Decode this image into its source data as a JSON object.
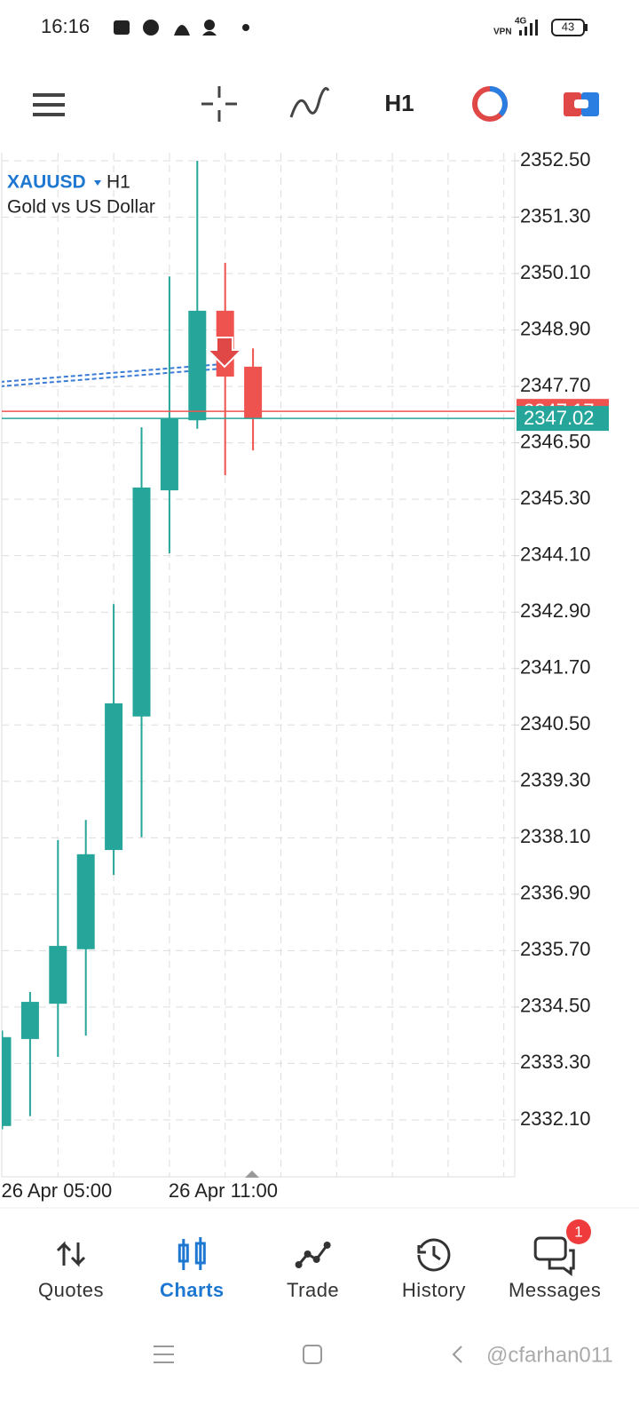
{
  "status_bar": {
    "time": "16:16",
    "vpn": "VPN",
    "network": "4G",
    "battery": "43"
  },
  "toolbar": {
    "timeframe": "H1"
  },
  "chart_data": {
    "type": "candlestick",
    "symbol": "XAUUSD",
    "timeframe": "H1",
    "description": "Gold vs US Dollar",
    "categories": [
      "26 Apr 05:00",
      null,
      null,
      null,
      null,
      null,
      "26 Apr 11:00",
      null,
      null,
      null
    ],
    "open": [
      2331.97,
      2333.82,
      2334.57,
      2335.73,
      2337.84,
      2340.68,
      2345.49,
      2346.98,
      2349.31,
      2348.12
    ],
    "high": [
      2334.0,
      2334.82,
      2338.05,
      2338.48,
      2343.07,
      2346.83,
      2350.04,
      2352.5,
      2350.33,
      2348.51
    ],
    "low": [
      2331.9,
      2332.18,
      2333.44,
      2333.89,
      2337.31,
      2338.11,
      2344.15,
      2346.8,
      2345.81,
      2346.34
    ],
    "close": [
      2333.86,
      2334.61,
      2335.8,
      2337.75,
      2340.96,
      2345.55,
      2347.02,
      2349.31,
      2347.91,
      2347.02
    ],
    "up_color": "#26a69a",
    "down_color": "#ef5350",
    "bid": 2347.02,
    "ask": 2347.17,
    "ylim": [
      2330.89,
      2352.67
    ],
    "yticks": [
      {
        "value": 2352.5,
        "label": "2352.50"
      },
      {
        "value": 2351.3,
        "label": "2351.30"
      },
      {
        "value": 2350.1,
        "label": "2350.10"
      },
      {
        "value": 2348.9,
        "label": "2348.90"
      },
      {
        "value": 2347.7,
        "label": "2347.70"
      },
      {
        "value": 2346.5,
        "label": "2346.50"
      },
      {
        "value": 2345.3,
        "label": "2345.30"
      },
      {
        "value": 2344.1,
        "label": "2344.10"
      },
      {
        "value": 2342.9,
        "label": "2342.90"
      },
      {
        "value": 2341.7,
        "label": "2341.70"
      },
      {
        "value": 2340.5,
        "label": "2340.50"
      },
      {
        "value": 2339.3,
        "label": "2339.30"
      },
      {
        "value": 2338.1,
        "label": "2338.10"
      },
      {
        "value": 2336.9,
        "label": "2336.90"
      },
      {
        "value": 2335.7,
        "label": "2335.70"
      },
      {
        "value": 2334.5,
        "label": "2334.50"
      },
      {
        "value": 2333.3,
        "label": "2333.30"
      },
      {
        "value": 2332.1,
        "label": "2332.10"
      }
    ],
    "grid": true
  },
  "nav": {
    "items": [
      "Quotes",
      "Charts",
      "Trade",
      "History",
      "Messages"
    ],
    "active": 1,
    "messages_badge": 1
  },
  "watermark": "@cfarhan011"
}
